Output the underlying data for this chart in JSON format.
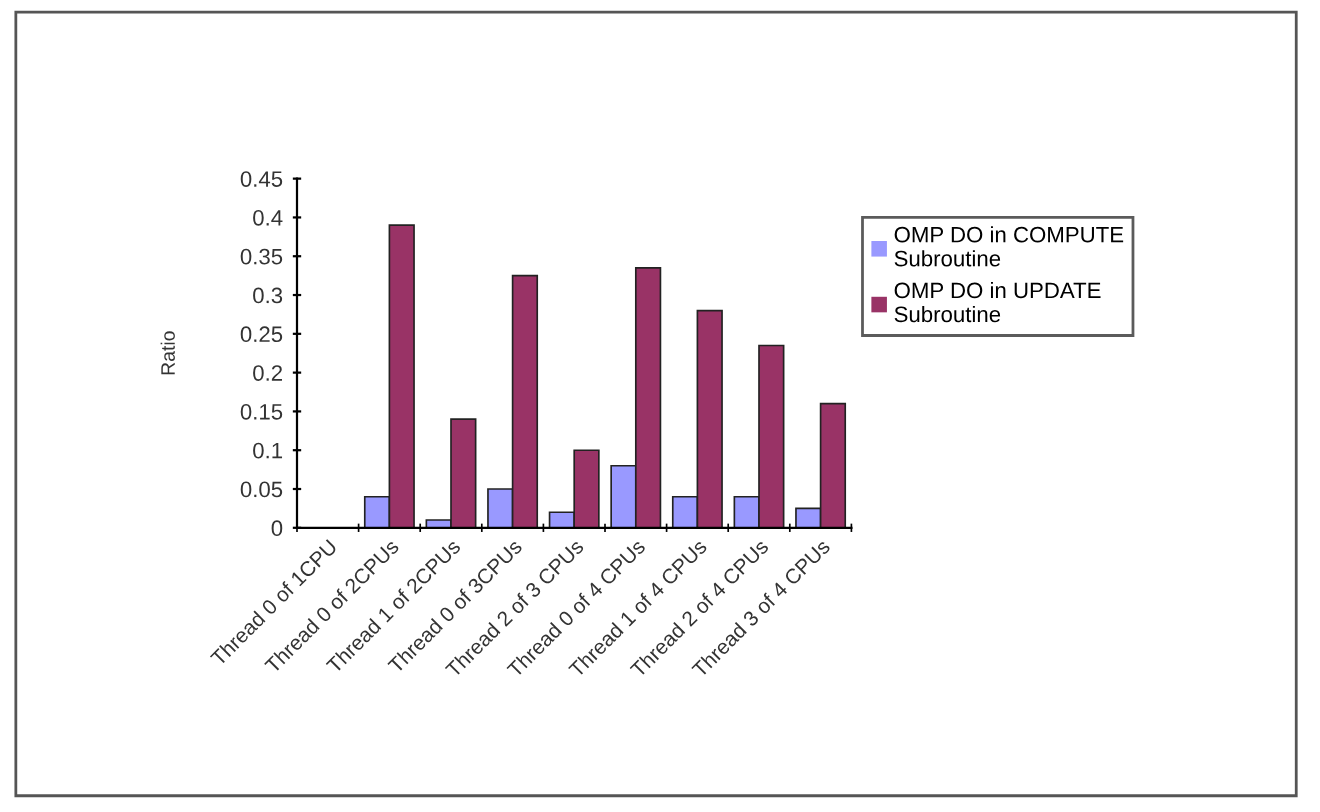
{
  "chart_data": {
    "type": "bar",
    "ylabel": "Ratio",
    "categories": [
      "Thread 0 of 1CPU",
      "Thread 0 of 2CPUs",
      "Thread 1 of 2CPUs",
      "Thread 0 of 3CPUs",
      "Thread 2 of 3 CPUs",
      "Thread 0 of 4 CPUs",
      "Thread 1 of 4 CPUs",
      "Thread 2 of 4 CPUs",
      "Thread 3 of 4 CPUs"
    ],
    "series": [
      {
        "name": "OMP DO in COMPUTE Subroutine",
        "color": "#9999ff",
        "values": [
          0,
          0.04,
          0.01,
          0.05,
          0.02,
          0.08,
          0.04,
          0.04,
          0.025
        ]
      },
      {
        "name": "OMP DO in UPDATE Subroutine",
        "color": "#993366",
        "values": [
          0,
          0.39,
          0.14,
          0.325,
          0.1,
          0.335,
          0.28,
          0.235,
          0.16
        ]
      }
    ],
    "ylim": [
      0,
      0.45
    ],
    "yticks": [
      0,
      0.05,
      0.1,
      0.15,
      0.2,
      0.25,
      0.3,
      0.35,
      0.4,
      0.45
    ],
    "grid": false,
    "legend": "right"
  }
}
